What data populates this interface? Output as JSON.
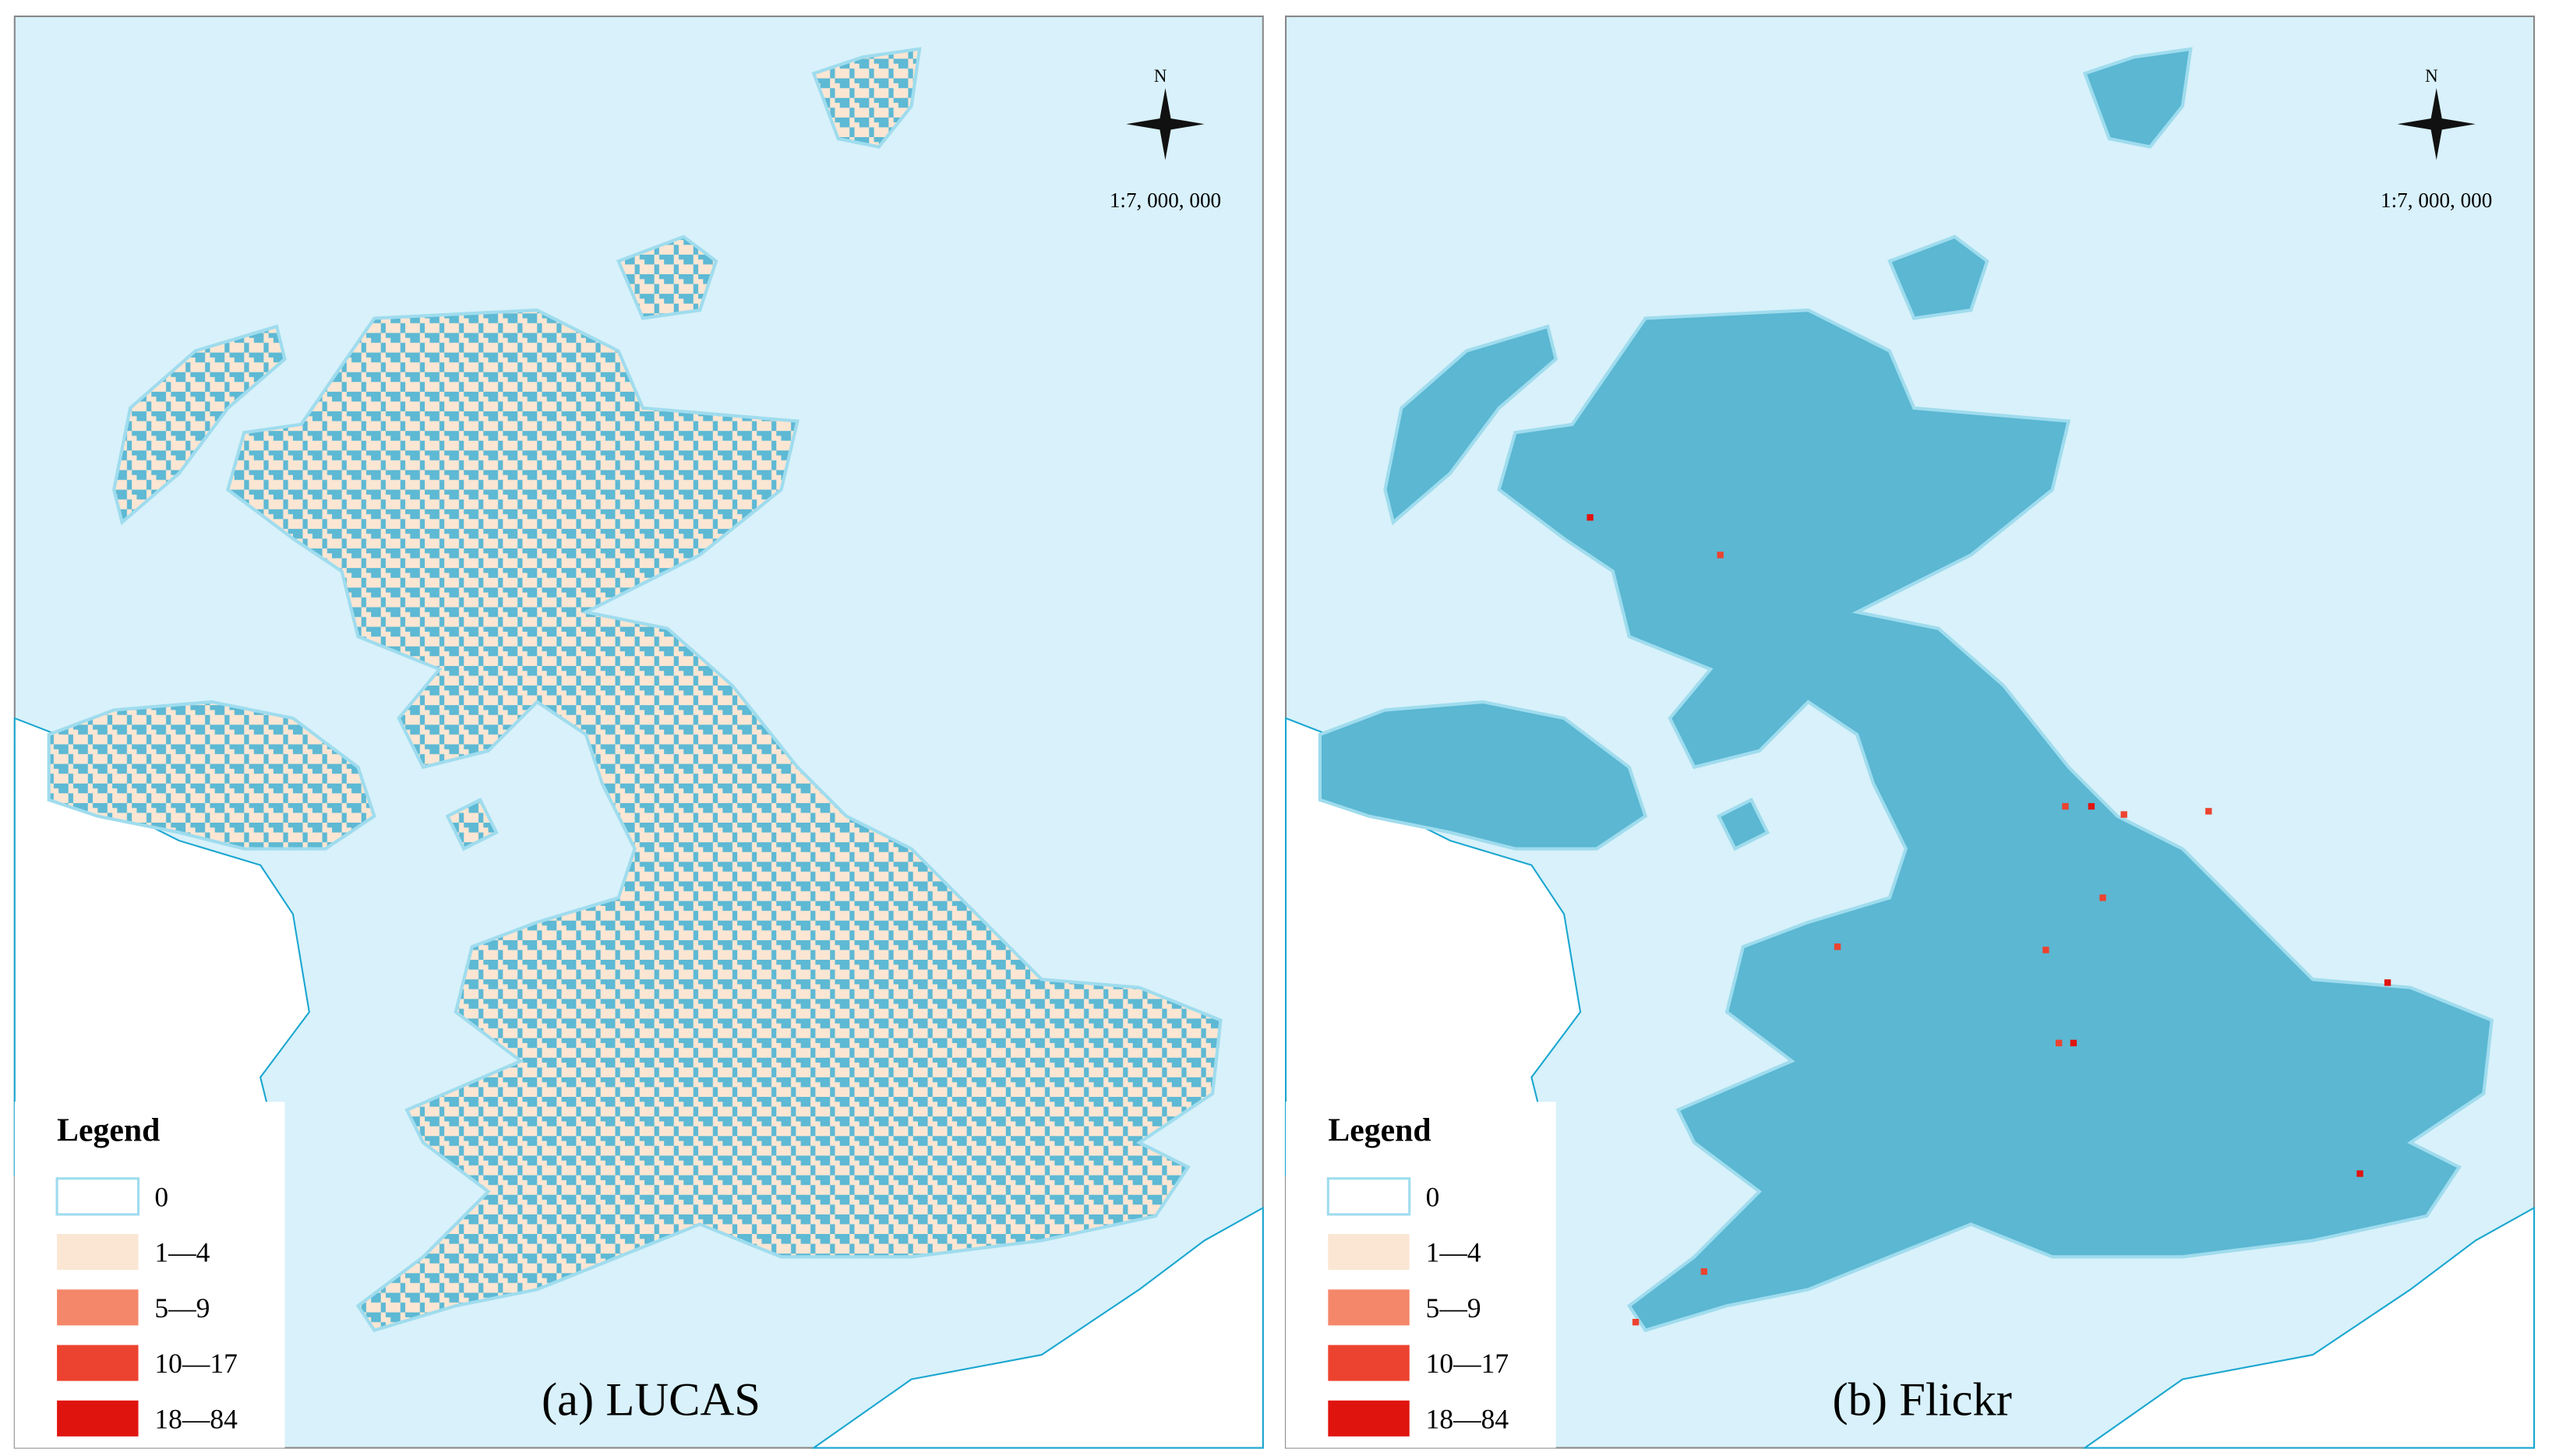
{
  "panels": [
    {
      "caption": "(a)  LUCAS",
      "north": "N",
      "scale": "1:7, 000, 000",
      "style": "lucas",
      "legend": {
        "title": "Legend",
        "items": [
          {
            "label": "0",
            "color": "#ffffff"
          },
          {
            "label": "1—4",
            "color": "#fbe6d3"
          },
          {
            "label": "5—9",
            "color": "#f4876a"
          },
          {
            "label": "10—17",
            "color": "#ec4330"
          },
          {
            "label": "18—84",
            "color": "#e0140f"
          }
        ]
      }
    },
    {
      "caption": "(b)  Flickr",
      "north": "N",
      "scale": "1:7, 000, 000",
      "style": "flickr",
      "legend": {
        "title": "Legend",
        "items": [
          {
            "label": "0",
            "color": "#ffffff"
          },
          {
            "label": "1—4",
            "color": "#fbe6d3"
          },
          {
            "label": "5—9",
            "color": "#f4876a"
          },
          {
            "label": "10—17",
            "color": "#ec4330"
          },
          {
            "label": "18—84",
            "color": "#e0140f"
          }
        ]
      }
    }
  ]
}
